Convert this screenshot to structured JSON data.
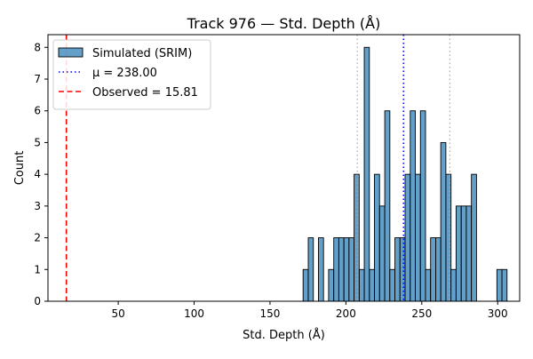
{
  "chart_data": {
    "type": "bar",
    "title": "Track 976 — Std. Depth (Å)",
    "xlabel": "Std. Depth (Å)",
    "ylabel": "Count",
    "xlim": [
      3.7,
      314.5
    ],
    "ylim": [
      0,
      8.4
    ],
    "xticks": [
      50,
      100,
      150,
      200,
      250,
      300
    ],
    "yticks": [
      0,
      1,
      2,
      3,
      4,
      5,
      6,
      7,
      8
    ],
    "bin_width": 3.36,
    "series": [
      {
        "name": "Simulated (SRIM)",
        "color": "#1f77b4",
        "bins": [
          {
            "x": 171.8,
            "count": 1
          },
          {
            "x": 175.2,
            "count": 2
          },
          {
            "x": 181.9,
            "count": 2
          },
          {
            "x": 188.6,
            "count": 1
          },
          {
            "x": 192.0,
            "count": 2
          },
          {
            "x": 195.3,
            "count": 2
          },
          {
            "x": 198.7,
            "count": 2
          },
          {
            "x": 202.0,
            "count": 2
          },
          {
            "x": 205.4,
            "count": 4
          },
          {
            "x": 208.8,
            "count": 1
          },
          {
            "x": 212.1,
            "count": 8
          },
          {
            "x": 215.5,
            "count": 1
          },
          {
            "x": 218.8,
            "count": 4
          },
          {
            "x": 222.2,
            "count": 3
          },
          {
            "x": 225.6,
            "count": 6
          },
          {
            "x": 228.9,
            "count": 1
          },
          {
            "x": 232.3,
            "count": 2
          },
          {
            "x": 235.6,
            "count": 2
          },
          {
            "x": 239.0,
            "count": 4
          },
          {
            "x": 242.4,
            "count": 6
          },
          {
            "x": 245.7,
            "count": 4
          },
          {
            "x": 249.1,
            "count": 6
          },
          {
            "x": 252.4,
            "count": 1
          },
          {
            "x": 255.8,
            "count": 2
          },
          {
            "x": 259.2,
            "count": 2
          },
          {
            "x": 262.5,
            "count": 5
          },
          {
            "x": 265.9,
            "count": 4
          },
          {
            "x": 269.2,
            "count": 1
          },
          {
            "x": 272.6,
            "count": 3
          },
          {
            "x": 276.0,
            "count": 3
          },
          {
            "x": 279.3,
            "count": 3
          },
          {
            "x": 282.7,
            "count": 4
          },
          {
            "x": 299.5,
            "count": 1
          },
          {
            "x": 302.8,
            "count": 1
          }
        ]
      }
    ],
    "reference_lines": [
      {
        "name": "μ = 238.00",
        "x": 238.0,
        "color": "#0000ff",
        "style": "dotted",
        "in_legend": true
      },
      {
        "name": "Observed = 15.81",
        "x": 15.81,
        "color": "#ff0000",
        "style": "dashed",
        "in_legend": true
      },
      {
        "name": "",
        "x": 207.5,
        "color": "#aaaaaa",
        "style": "dotted",
        "in_legend": false
      },
      {
        "name": "",
        "x": 268.5,
        "color": "#aaaaaa",
        "style": "dotted",
        "in_legend": false
      }
    ],
    "grid": false,
    "legend_position": "top-left"
  }
}
